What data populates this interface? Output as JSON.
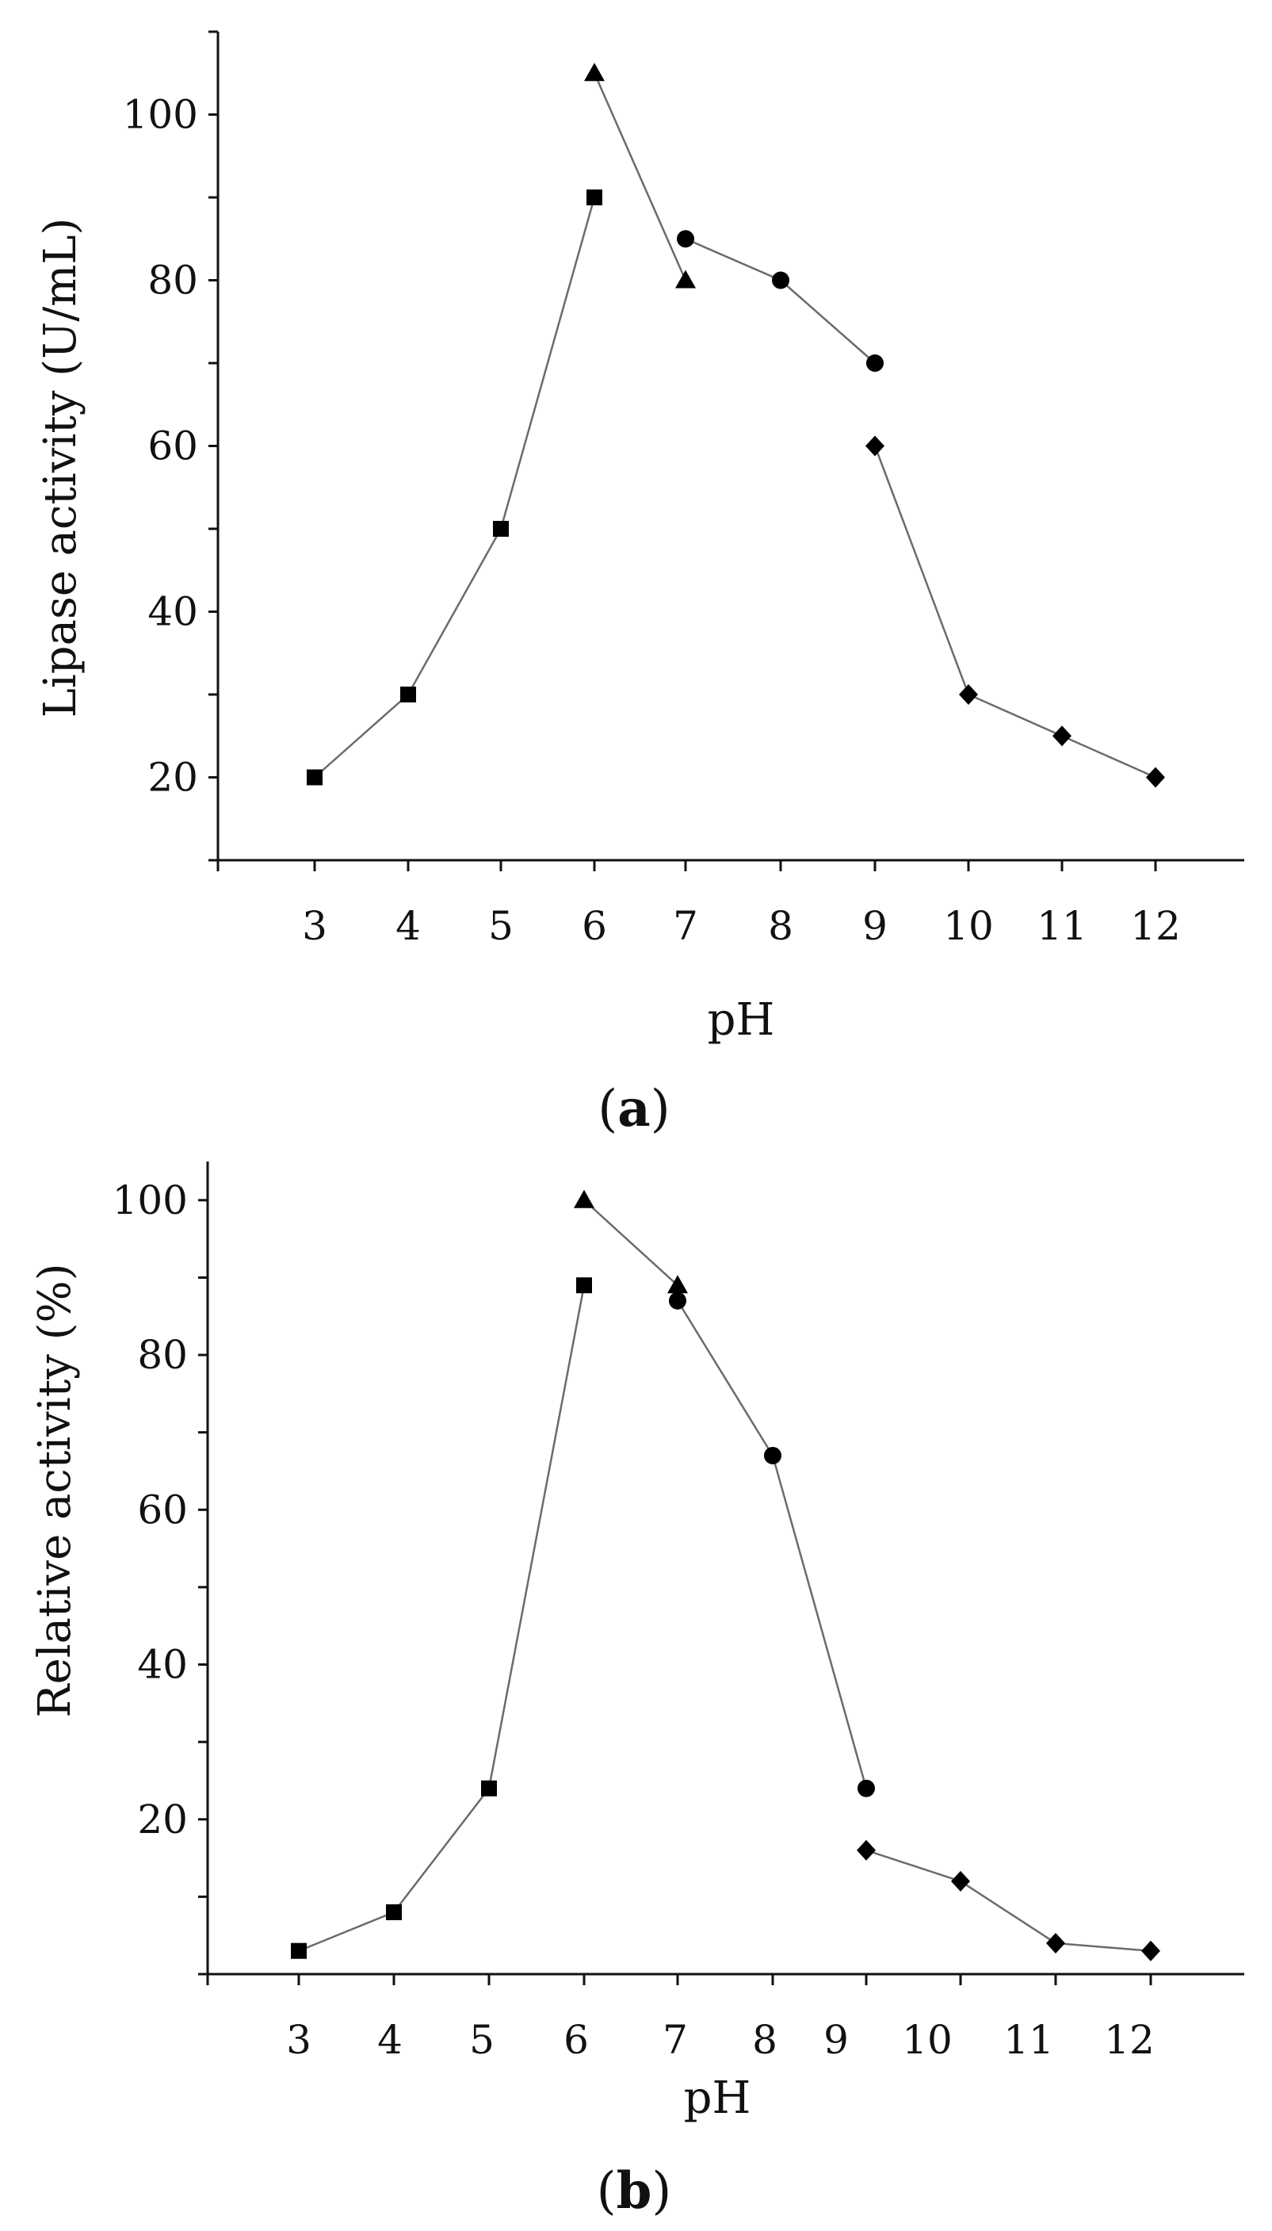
{
  "panels": [
    {
      "label": "a",
      "chart_data": {
        "type": "scatter",
        "xlabel": "pH",
        "ylabel": "Lipase activity (U/mL)",
        "x_tick_labels": [
          "3",
          "4",
          "5",
          "6",
          "7",
          "8",
          "9",
          "10",
          "11",
          "12"
        ],
        "y_tick_labels": [
          "20",
          "40",
          "60",
          "80",
          "100"
        ],
        "connected": true,
        "series": [
          {
            "marker": "square",
            "x": [
              3,
              4,
              5,
              6
            ],
            "y": [
              20,
              30,
              50,
              90
            ]
          },
          {
            "marker": "triangle",
            "x": [
              6,
              7
            ],
            "y": [
              105,
              80
            ]
          },
          {
            "marker": "circle",
            "x": [
              7,
              8,
              9
            ],
            "y": [
              85,
              80,
              70
            ]
          },
          {
            "marker": "diamond",
            "x": [
              9,
              10,
              11,
              12
            ],
            "y": [
              60,
              30,
              25,
              20
            ]
          }
        ]
      }
    },
    {
      "label": "b",
      "chart_data": {
        "type": "scatter",
        "xlabel": "pH",
        "ylabel": "Relative activity (%)",
        "x_tick_labels": [
          "3",
          "4",
          "5",
          "6",
          "7",
          "8",
          "9",
          "10",
          "11",
          "12"
        ],
        "y_tick_labels": [
          "20",
          "40",
          "60",
          "80",
          "100"
        ],
        "connected": true,
        "series": [
          {
            "marker": "square",
            "x": [
              3,
              4,
              5,
              6
            ],
            "y": [
              3,
              8,
              24,
              89
            ]
          },
          {
            "marker": "triangle",
            "x": [
              6,
              7
            ],
            "y": [
              100,
              89
            ]
          },
          {
            "marker": "circle",
            "x": [
              7,
              8,
              9
            ],
            "y": [
              87,
              67,
              24
            ]
          },
          {
            "marker": "diamond",
            "x": [
              9,
              10,
              11,
              12
            ],
            "y": [
              16,
              12,
              4,
              3
            ]
          }
        ]
      }
    }
  ]
}
